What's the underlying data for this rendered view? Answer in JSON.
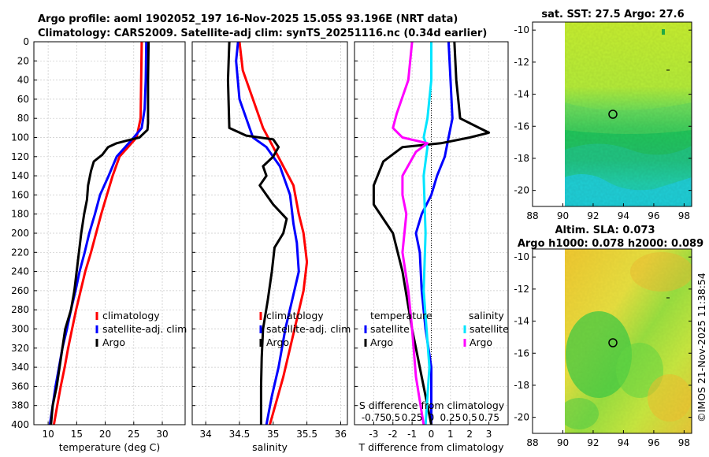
{
  "title": {
    "line1": "Argo profile: aoml 1902052_197 16-Nov-2025 15.05S 93.196E (NRT data)",
    "line2": "Climatology: CARS2009. Satellite-adj clim: synTS_20251116.nc (0.34d earlier)"
  },
  "colors": {
    "climatology": "#ff0000",
    "satellite": "#0000ff",
    "argo": "#000000",
    "sal_diff": "#ff00ff",
    "sal_sat_diff": "#00e5ff"
  },
  "chart_data": [
    {
      "type": "line",
      "name": "temperature",
      "xlabel": "temperature (deg C)",
      "xlim": [
        7.5,
        34
      ],
      "xticks": [
        10,
        15,
        20,
        25,
        30
      ],
      "ylim": [
        400,
        0
      ],
      "yticks": [
        0,
        20,
        40,
        60,
        80,
        100,
        120,
        140,
        160,
        180,
        200,
        220,
        240,
        260,
        280,
        300,
        320,
        340,
        360,
        380,
        400
      ],
      "legend": [
        "climatology",
        "satellite-adj. clim",
        "Argo"
      ],
      "legend_position": "lower-right",
      "series": [
        {
          "name": "climatology",
          "color": "#ff0000",
          "points": [
            [
              26.4,
              0
            ],
            [
              26.3,
              40
            ],
            [
              26.2,
              80
            ],
            [
              25.5,
              100
            ],
            [
              24.0,
              110
            ],
            [
              22.5,
              120
            ],
            [
              21.3,
              140
            ],
            [
              20.3,
              160
            ],
            [
              19.3,
              180
            ],
            [
              18.4,
              200
            ],
            [
              17.5,
              220
            ],
            [
              16.5,
              240
            ],
            [
              15.7,
              260
            ],
            [
              14.9,
              280
            ],
            [
              14.2,
              300
            ],
            [
              13.5,
              320
            ],
            [
              12.9,
              340
            ],
            [
              12.2,
              360
            ],
            [
              11.6,
              380
            ],
            [
              11.0,
              400
            ]
          ]
        },
        {
          "name": "satellite-adj. clim",
          "color": "#0000ff",
          "points": [
            [
              27.2,
              0
            ],
            [
              27.1,
              40
            ],
            [
              26.9,
              70
            ],
            [
              26.4,
              90
            ],
            [
              25.0,
              100
            ],
            [
              23.5,
              110
            ],
            [
              22.0,
              120
            ],
            [
              20.6,
              140
            ],
            [
              19.1,
              160
            ],
            [
              18.2,
              180
            ],
            [
              17.2,
              200
            ],
            [
              16.4,
              220
            ],
            [
              15.5,
              240
            ],
            [
              14.8,
              260
            ],
            [
              14.0,
              280
            ],
            [
              13.3,
              300
            ],
            [
              12.5,
              320
            ],
            [
              11.9,
              340
            ],
            [
              11.3,
              360
            ],
            [
              10.8,
              380
            ],
            [
              10.3,
              400
            ]
          ]
        },
        {
          "name": "Argo",
          "color": "#000000",
          "points": [
            [
              27.6,
              0
            ],
            [
              27.5,
              40
            ],
            [
              27.5,
              85
            ],
            [
              27.4,
              92
            ],
            [
              26.0,
              100
            ],
            [
              24.0,
              103
            ],
            [
              22.0,
              106
            ],
            [
              20.5,
              110
            ],
            [
              19.5,
              118
            ],
            [
              18.0,
              125
            ],
            [
              17.5,
              135
            ],
            [
              17.0,
              150
            ],
            [
              16.8,
              165
            ],
            [
              16.3,
              180
            ],
            [
              15.8,
              200
            ],
            [
              15.4,
              220
            ],
            [
              15.0,
              240
            ],
            [
              14.6,
              260
            ],
            [
              14.0,
              280
            ],
            [
              13.0,
              300
            ],
            [
              12.5,
              320
            ],
            [
              12.0,
              340
            ],
            [
              11.5,
              360
            ],
            [
              10.8,
              380
            ],
            [
              10.5,
              400
            ]
          ]
        }
      ]
    },
    {
      "type": "line",
      "name": "salinity",
      "xlabel": "salinity",
      "xlim": [
        33.8,
        36.1
      ],
      "xticks": [
        34,
        34.5,
        35,
        35.5,
        36
      ],
      "ylim": [
        400,
        0
      ],
      "legend": [
        "climatology",
        "satellite-adj. clim",
        "Argo"
      ],
      "legend_position": "lower-right",
      "series": [
        {
          "name": "climatology",
          "color": "#ff0000",
          "points": [
            [
              34.5,
              0
            ],
            [
              34.55,
              30
            ],
            [
              34.7,
              60
            ],
            [
              34.85,
              90
            ],
            [
              35.0,
              110
            ],
            [
              35.15,
              130
            ],
            [
              35.3,
              150
            ],
            [
              35.38,
              180
            ],
            [
              35.45,
              200
            ],
            [
              35.5,
              230
            ],
            [
              35.45,
              260
            ],
            [
              35.35,
              290
            ],
            [
              35.25,
              320
            ],
            [
              35.15,
              350
            ],
            [
              35.05,
              375
            ],
            [
              34.95,
              400
            ]
          ]
        },
        {
          "name": "satellite-adj. clim",
          "color": "#0000ff",
          "points": [
            [
              34.48,
              0
            ],
            [
              34.45,
              20
            ],
            [
              34.5,
              60
            ],
            [
              34.7,
              100
            ],
            [
              34.9,
              110
            ],
            [
              35.1,
              130
            ],
            [
              35.25,
              160
            ],
            [
              35.3,
              190
            ],
            [
              35.35,
              210
            ],
            [
              35.38,
              240
            ],
            [
              35.28,
              270
            ],
            [
              35.18,
              300
            ],
            [
              35.08,
              340
            ],
            [
              34.98,
              370
            ],
            [
              34.9,
              400
            ]
          ]
        },
        {
          "name": "Argo",
          "color": "#000000",
          "points": [
            [
              34.35,
              0
            ],
            [
              34.33,
              40
            ],
            [
              34.35,
              90
            ],
            [
              34.6,
              98
            ],
            [
              35.0,
              102
            ],
            [
              35.08,
              110
            ],
            [
              35.0,
              120
            ],
            [
              34.85,
              130
            ],
            [
              34.9,
              140
            ],
            [
              34.8,
              150
            ],
            [
              34.9,
              160
            ],
            [
              35.0,
              170
            ],
            [
              35.2,
              185
            ],
            [
              35.15,
              200
            ],
            [
              35.02,
              215
            ],
            [
              34.98,
              240
            ],
            [
              34.92,
              270
            ],
            [
              34.85,
              300
            ],
            [
              34.83,
              330
            ],
            [
              34.82,
              360
            ],
            [
              34.82,
              400
            ]
          ]
        }
      ]
    },
    {
      "type": "line",
      "name": "difference",
      "xlabel": "T difference from climatology",
      "xlim": [
        -4,
        4
      ],
      "xticks": [
        -3,
        -2,
        -1,
        0,
        1,
        2,
        3
      ],
      "top_axis_label": "S difference from climatology",
      "top_ticks": [
        "-0.75",
        "0.5",
        "0.25",
        "0",
        "0.25",
        "0.5",
        "0.75"
      ],
      "ylim": [
        400,
        0
      ],
      "legend_temperature": {
        "title": "temperature",
        "items": [
          "satellite",
          "Argo"
        ]
      },
      "legend_salinity": {
        "title": "salinity",
        "items": [
          "satellite",
          "Argo"
        ]
      },
      "series": [
        {
          "name": "T satellite",
          "color": "#0000ff",
          "points": [
            [
              0.9,
              0
            ],
            [
              1.0,
              40
            ],
            [
              1.1,
              80
            ],
            [
              0.9,
              100
            ],
            [
              0.7,
              120
            ],
            [
              0.3,
              140
            ],
            [
              0.0,
              160
            ],
            [
              -0.5,
              180
            ],
            [
              -0.8,
              200
            ],
            [
              -0.6,
              220
            ],
            [
              -0.5,
              260
            ],
            [
              -0.3,
              300
            ],
            [
              0.0,
              340
            ],
            [
              0.0,
              400
            ]
          ]
        },
        {
          "name": "T Argo",
          "color": "#000000",
          "points": [
            [
              1.2,
              0
            ],
            [
              1.3,
              40
            ],
            [
              1.5,
              80
            ],
            [
              2.5,
              90
            ],
            [
              3.0,
              95
            ],
            [
              2.0,
              100
            ],
            [
              0.5,
              106
            ],
            [
              -1.5,
              110
            ],
            [
              -2.5,
              125
            ],
            [
              -3.0,
              150
            ],
            [
              -3.0,
              170
            ],
            [
              -2.0,
              200
            ],
            [
              -1.5,
              240
            ],
            [
              -1.0,
              300
            ],
            [
              -0.5,
              350
            ],
            [
              0.0,
              400
            ]
          ]
        },
        {
          "name": "S satellite",
          "color": "#00e5ff",
          "points": [
            [
              0.0,
              0
            ],
            [
              0.0,
              40
            ],
            [
              -0.2,
              80
            ],
            [
              -0.4,
              100
            ],
            [
              -0.2,
              110
            ],
            [
              -0.4,
              140
            ],
            [
              -0.3,
              200
            ],
            [
              -0.4,
              260
            ],
            [
              -0.1,
              340
            ],
            [
              -0.3,
              400
            ]
          ]
        },
        {
          "name": "S Argo",
          "color": "#ff00ff",
          "points": [
            [
              -1.0,
              0
            ],
            [
              -1.2,
              40
            ],
            [
              -1.8,
              75
            ],
            [
              -2.0,
              90
            ],
            [
              -1.5,
              100
            ],
            [
              -0.2,
              106
            ],
            [
              -0.8,
              115
            ],
            [
              -1.5,
              140
            ],
            [
              -1.5,
              160
            ],
            [
              -1.3,
              180
            ],
            [
              -1.5,
              220
            ],
            [
              -1.2,
              260
            ],
            [
              -1.0,
              300
            ],
            [
              -0.8,
              350
            ],
            [
              -0.4,
              400
            ]
          ]
        }
      ]
    },
    {
      "type": "heatmap",
      "name": "sst_map",
      "title": "sat. SST: 27.5 Argo: 27.6",
      "xlim": [
        88,
        98.5
      ],
      "xticks": [
        88,
        90,
        92,
        94,
        96,
        98
      ],
      "ylim": [
        -21,
        -9.5
      ],
      "yticks": [
        -10,
        -12,
        -14,
        -16,
        -18,
        -20
      ],
      "argo_position": [
        93.196,
        -15.05
      ]
    },
    {
      "type": "heatmap",
      "name": "sla_map",
      "title1": "Altim. SLA: 0.073",
      "title2": "Argo h1000: 0.078 h2000: 0.089",
      "xlim": [
        88,
        98.5
      ],
      "xticks": [
        88,
        90,
        92,
        94,
        96,
        98
      ],
      "ylim": [
        -21,
        -9.5
      ],
      "yticks": [
        -10,
        -12,
        -14,
        -16,
        -18,
        -20
      ],
      "argo_position": [
        93.196,
        -15.05
      ]
    }
  ],
  "credit": "©IMOS 21-Nov-2025 11:38:54"
}
